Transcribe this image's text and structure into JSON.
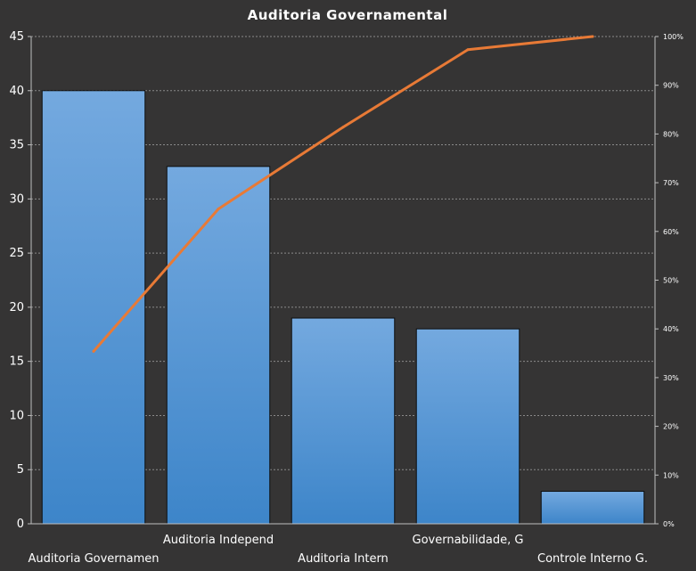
{
  "chart_data": {
    "type": "bar",
    "title": "Auditoria Governamental",
    "categories": [
      "Auditoria Governamen",
      "Auditoria Independ",
      "Auditoria Intern",
      "Governabilidade, G",
      "Controle Interno G."
    ],
    "series": [
      {
        "type": "bar",
        "values": [
          40,
          33,
          19,
          18,
          3
        ]
      },
      {
        "type": "line",
        "axis": "right",
        "values": [
          35.4,
          64.6,
          81.4,
          97.3,
          100
        ]
      }
    ],
    "ylim": [
      0,
      45
    ],
    "yticks": [
      "0",
      "5",
      "10",
      "15",
      "20",
      "25",
      "30",
      "35",
      "40",
      "45"
    ],
    "y2lim": [
      0,
      100
    ],
    "y2ticks": [
      "0%",
      "10%",
      "20%",
      "30%",
      "40%",
      "50%",
      "60%",
      "70%",
      "80%",
      "90%",
      "100%"
    ],
    "grid": true,
    "legend": "none",
    "colors": {
      "background": "#353434",
      "bar_top": "#74a9df",
      "bar_bottom": "#3d85c9",
      "bar_border": "#0d0d0d",
      "line": "#e87a36",
      "grid": "#8a8a8a",
      "axis": "#bfbfbf",
      "text": "#ffffff"
    }
  }
}
